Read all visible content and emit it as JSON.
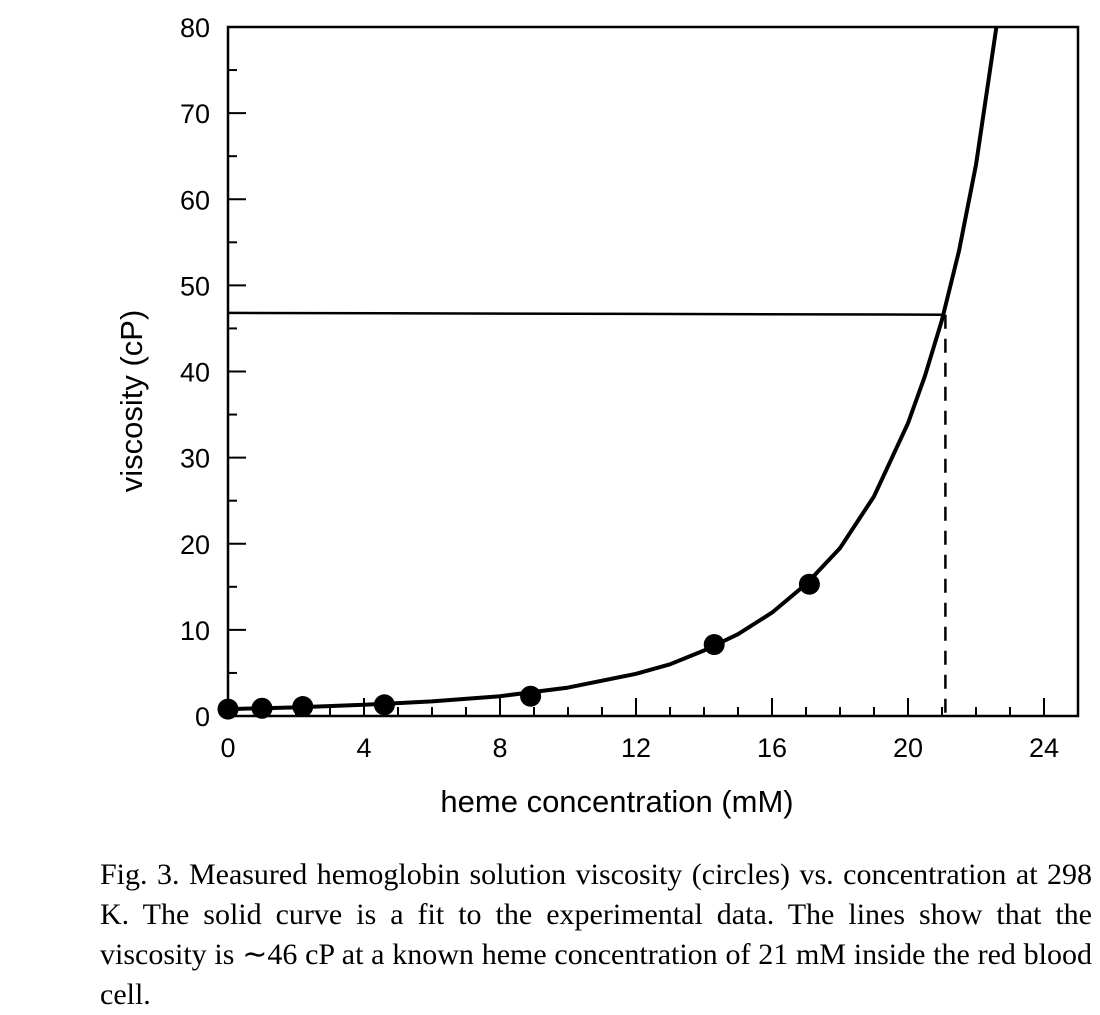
{
  "chart_data": {
    "type": "scatter",
    "xlabel": "heme concentration (mM)",
    "ylabel": "viscosity (cP)",
    "xlim": [
      0,
      25
    ],
    "ylim": [
      0,
      80
    ],
    "x_ticks": [
      0,
      4,
      8,
      12,
      16,
      20,
      24
    ],
    "y_ticks": [
      0,
      10,
      20,
      30,
      40,
      50,
      60,
      70,
      80
    ],
    "x_minor_step": 1,
    "y_minor_step": 5,
    "grid": false,
    "series": [
      {
        "kind": "points",
        "marker": "filled-circle",
        "x": [
          0,
          1,
          2.2,
          4.6,
          8.9,
          14.3,
          17.1
        ],
        "y": [
          0.8,
          0.9,
          1.1,
          1.3,
          2.3,
          8.3,
          15.3
        ]
      },
      {
        "kind": "fit-curve",
        "style": "solid",
        "x": [
          0,
          2,
          4,
          6,
          8,
          10,
          12,
          13,
          14,
          15,
          16,
          17,
          18,
          19,
          20,
          20.5,
          21,
          21.5,
          22,
          22.6
        ],
        "y": [
          0.8,
          1.0,
          1.3,
          1.7,
          2.3,
          3.3,
          4.9,
          6.0,
          7.6,
          9.5,
          12.0,
          15.3,
          19.5,
          25.5,
          34.0,
          39.5,
          46.0,
          54.0,
          64.0,
          80.0
        ]
      },
      {
        "kind": "reference-line",
        "style": "solid",
        "x": [
          0,
          21.1
        ],
        "y": [
          46.8,
          46.6
        ]
      },
      {
        "kind": "reference-line",
        "style": "dashed",
        "x": [
          21.1,
          21.1
        ],
        "y": [
          46.6,
          0
        ]
      }
    ]
  },
  "caption": "Fig. 3. Measured hemoglobin solution viscosity (circles) vs. concentration at 298 K. The solid curve is a fit to the experimental data. The lines show that the viscosity is ∼46 cP at a known heme concentration of 21 mM inside the red blood cell."
}
